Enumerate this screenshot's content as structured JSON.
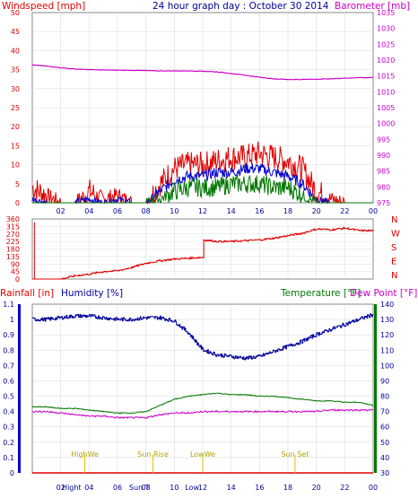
{
  "title": "24 hour graph day : October 30 2014",
  "colors": {
    "frame": "#888888",
    "grid": "#dddddd",
    "red": "#e00000",
    "blue": "#0000cc",
    "darkblue": "#000099",
    "green": "#007700",
    "magenta": "#cc00cc",
    "yellow": "#d7c400",
    "gold": "#b0a000"
  },
  "chart_data": [
    {
      "type": "line",
      "name": "wind",
      "ylabel_left": "Windspeed [mph]",
      "ylabel_right": "Barometer [mb]",
      "x_ticks": [
        "02",
        "04",
        "06",
        "08",
        "10",
        "12",
        "14",
        "16",
        "18",
        "20",
        "22",
        "00"
      ],
      "ylim": [
        0,
        50
      ],
      "y_ticks": [
        0,
        5,
        10,
        15,
        20,
        25,
        30,
        35,
        40,
        45,
        50
      ],
      "y2lim": [
        975,
        1035
      ],
      "y2_ticks": [
        975,
        980,
        985,
        990,
        995,
        1000,
        1005,
        1010,
        1015,
        1020,
        1025,
        1030,
        1035
      ],
      "x_hours": [
        0,
        1,
        2,
        3,
        4,
        5,
        6,
        7,
        8,
        9,
        10,
        11,
        12,
        13,
        14,
        15,
        16,
        17,
        18,
        19,
        20,
        21,
        22,
        23,
        24
      ],
      "gust_mph": [
        4,
        2,
        0,
        0,
        3,
        1,
        2,
        0,
        0,
        5,
        9,
        10,
        10,
        11,
        12,
        12,
        13,
        12,
        11,
        9,
        3,
        1,
        0,
        0,
        0
      ],
      "wind_mph": [
        1,
        0,
        0,
        0,
        1,
        0,
        1,
        0,
        0,
        3,
        6,
        7,
        7,
        8,
        8,
        9,
        9,
        8,
        7,
        5,
        1,
        0,
        0,
        0,
        0
      ],
      "avg_wind_mph": [
        0,
        0,
        0,
        0,
        0,
        0,
        0,
        0,
        0,
        1,
        3,
        4,
        4,
        4,
        5,
        5,
        5,
        4,
        4,
        2,
        0,
        0,
        0,
        0,
        0
      ],
      "barometer_mb": [
        1018.5,
        1018.1,
        1017.6,
        1017.2,
        1017.0,
        1016.9,
        1016.8,
        1016.8,
        1016.7,
        1016.6,
        1016.6,
        1016.6,
        1016.5,
        1016.3,
        1015.8,
        1015.2,
        1014.6,
        1014.1,
        1013.9,
        1013.9,
        1014.0,
        1014.1,
        1014.3,
        1014.5,
        1014.5
      ]
    },
    {
      "type": "line",
      "name": "direction",
      "compass": [
        "N",
        "W",
        "S",
        "E",
        "N"
      ],
      "ylim": [
        0,
        360
      ],
      "y_ticks": [
        0,
        45,
        90,
        135,
        180,
        225,
        270,
        315,
        360
      ],
      "x_hours": [
        0,
        1,
        2,
        3,
        4,
        5,
        6,
        7,
        8,
        9,
        10,
        11,
        12,
        12.01,
        13,
        14,
        15,
        16,
        17,
        18,
        19,
        20,
        21,
        22,
        23,
        24
      ],
      "direction_deg": [
        0,
        0,
        0,
        20,
        30,
        45,
        50,
        70,
        95,
        110,
        120,
        125,
        130,
        235,
        225,
        225,
        230,
        235,
        245,
        260,
        275,
        300,
        295,
        305,
        290,
        290
      ]
    },
    {
      "type": "line",
      "name": "rain-humidity-temperature",
      "ylabel_rain": "Rainfall [in]",
      "ylabel_humidity": "Humidity [%]",
      "ylabel_temperature": "Temperature [°F]",
      "ylabel_dewpoint": "Dew Point [°F]",
      "rain_ticks": [
        "0",
        "0.1",
        "0.2",
        "0.3",
        "0.4",
        "0.5",
        "0.6",
        "0.7",
        "0.8",
        "0.9",
        "1",
        "1.1"
      ],
      "ylim_rain": [
        0,
        1.1
      ],
      "y2_ticks": [
        30,
        40,
        50,
        60,
        70,
        80,
        90,
        100,
        110,
        120,
        130,
        140
      ],
      "y2lim": [
        30,
        140
      ],
      "x_ticks": [
        "02",
        "04",
        "06",
        "08",
        "10",
        "12",
        "14",
        "16",
        "18",
        "20",
        "22",
        "00"
      ],
      "x_hours": [
        0,
        1,
        2,
        3,
        4,
        5,
        6,
        7,
        8,
        9,
        10,
        11,
        12,
        13,
        14,
        15,
        16,
        17,
        18,
        19,
        20,
        21,
        22,
        23,
        24
      ],
      "humidity_pct": [
        91,
        91,
        92,
        93,
        93,
        92,
        91,
        91,
        92,
        92,
        90,
        83,
        73,
        70,
        69,
        68,
        69,
        72,
        75,
        78,
        82,
        85,
        88,
        91,
        94
      ],
      "temperature_f": [
        73,
        73,
        72,
        72,
        71,
        70,
        69,
        69,
        70,
        74,
        78,
        80,
        81,
        82,
        81,
        81,
        80,
        80,
        79,
        78,
        77,
        77,
        76,
        76,
        74
      ],
      "dewpoint_f": [
        70,
        70,
        69,
        68,
        67,
        67,
        66,
        66,
        66,
        68,
        69,
        69,
        70,
        70,
        70,
        70,
        70,
        70,
        70,
        70,
        70,
        71,
        71,
        71,
        71
      ],
      "rainfall_in": [
        0,
        0,
        0,
        0,
        0,
        0,
        0,
        0,
        0,
        0,
        0,
        0,
        0,
        0,
        0,
        0,
        0,
        0,
        0,
        0,
        0,
        0,
        0,
        0,
        0
      ],
      "annotations": [
        {
          "label": "HighWe",
          "hour": 3.7
        },
        {
          "label": "Sun Rise",
          "hour": 8.5
        },
        {
          "label": "LowWe",
          "hour": 12.0
        },
        {
          "label": "Sun Set",
          "hour": 18.5
        }
      ],
      "x_axis_overlays": [
        "Hight",
        "Sun T",
        "Low"
      ]
    }
  ]
}
